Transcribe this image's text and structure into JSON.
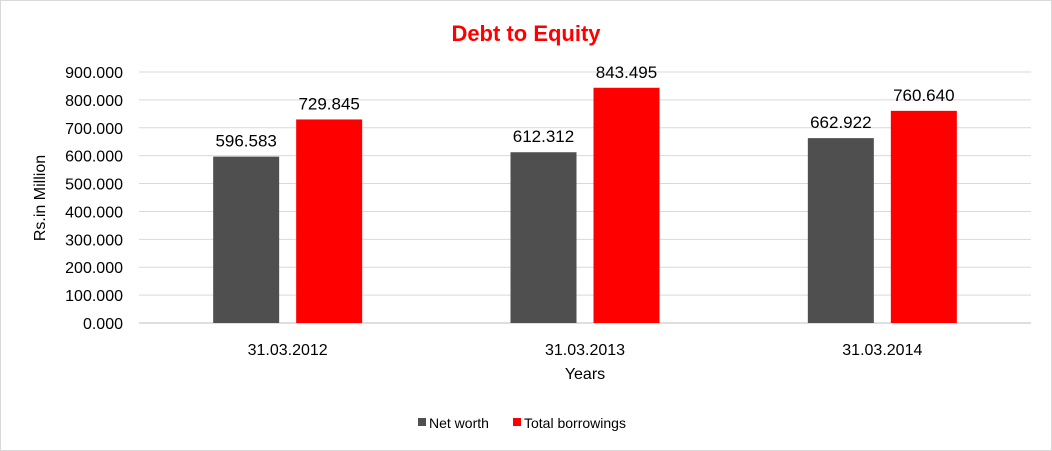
{
  "chart_data": {
    "type": "bar",
    "title": "Debt to Equity",
    "xlabel": "Years",
    "ylabel": "Rs.in Million",
    "categories": [
      "31.03.2012",
      "31.03.2013",
      "31.03.2014"
    ],
    "series": [
      {
        "name": "Net worth",
        "color": "#4f4f4f",
        "values": [
          596.583,
          612.312,
          662.922
        ],
        "labels": [
          "596.583",
          "612.312",
          "662.922"
        ]
      },
      {
        "name": "Total borrowings",
        "color": "#ff0000",
        "values": [
          729.845,
          843.495,
          760.64
        ],
        "labels": [
          "729.845",
          "843.495",
          "760.640"
        ]
      }
    ],
    "ylim": [
      0,
      900
    ],
    "yticks": [
      0,
      100,
      200,
      300,
      400,
      500,
      600,
      700,
      800,
      900
    ],
    "ytick_labels": [
      "0.000",
      "100.000",
      "200.000",
      "300.000",
      "400.000",
      "500.000",
      "600.000",
      "700.000",
      "800.000",
      "900.000"
    ],
    "grid": true,
    "legend_position": "bottom",
    "colors": {
      "title": "#ff0000",
      "grid": "#d9d9d9",
      "axis": "#bfbfbf"
    }
  }
}
